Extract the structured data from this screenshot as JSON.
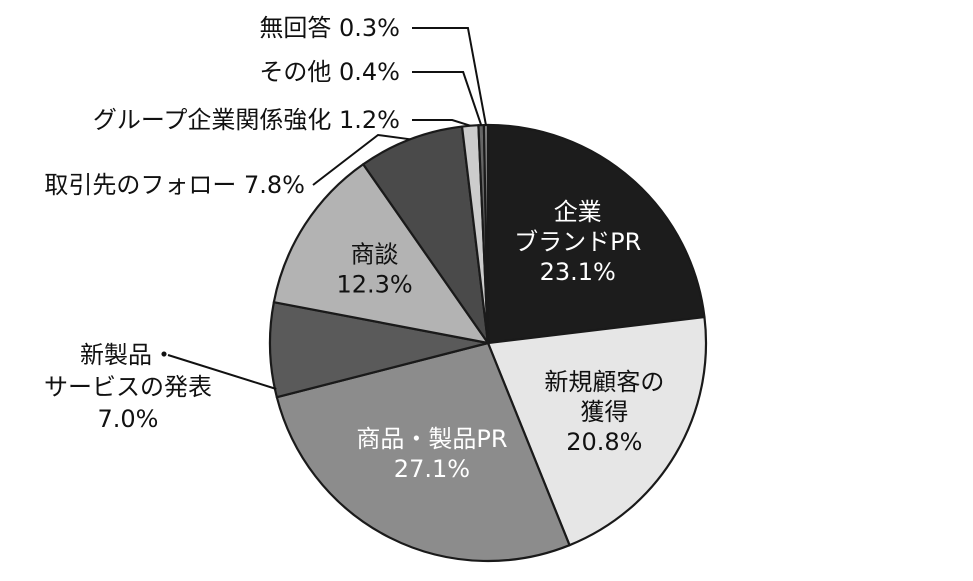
{
  "chart_data": {
    "type": "pie",
    "start": "12 o'clock",
    "direction": "clockwise",
    "slices": [
      {
        "label": "企業ブランドPR",
        "value": 23.1,
        "value_text": "23.1%",
        "lines": [
          "企業",
          "ブランドPR"
        ],
        "color": "#1c1c1c",
        "text_color": "#ffffff",
        "placement": "inside"
      },
      {
        "label": "新規顧客の獲得",
        "value": 20.8,
        "value_text": "20.8%",
        "lines": [
          "新規顧客の",
          "獲得"
        ],
        "color": "#e6e6e6",
        "text_color": "#111111",
        "placement": "inside"
      },
      {
        "label": "商品・製品PR",
        "value": 27.1,
        "value_text": "27.1%",
        "lines": [
          "商品・製品PR"
        ],
        "color": "#8c8c8c",
        "text_color": "#ffffff",
        "placement": "inside"
      },
      {
        "label": "新製品・サービスの発表",
        "value": 7.0,
        "value_text": "7.0%",
        "lines": [
          "新製品・",
          "サービスの発表"
        ],
        "color": "#5a5a5a",
        "text_color": "#111111",
        "placement": "outside-left"
      },
      {
        "label": "商談",
        "value": 12.3,
        "value_text": "12.3%",
        "lines": [
          "商談"
        ],
        "color": "#b3b3b3",
        "text_color": "#111111",
        "placement": "inside"
      },
      {
        "label": "取引先のフォロー",
        "value": 7.8,
        "value_text": "7.8%",
        "lines": [
          "取引先のフォロー"
        ],
        "color": "#4a4a4a",
        "text_color": "#111111",
        "placement": "callout"
      },
      {
        "label": "グループ企業関係強化",
        "value": 1.2,
        "value_text": "1.2%",
        "lines": [
          "グループ企業関係強化"
        ],
        "color": "#cccccc",
        "text_color": "#111111",
        "placement": "callout"
      },
      {
        "label": "その他",
        "value": 0.4,
        "value_text": "0.4%",
        "lines": [
          "その他"
        ],
        "color": "#666666",
        "text_color": "#111111",
        "placement": "callout"
      },
      {
        "label": "無回答",
        "value": 0.3,
        "value_text": "0.3%",
        "lines": [
          "無回答"
        ],
        "color": "#888888",
        "text_color": "#111111",
        "placement": "callout"
      }
    ]
  }
}
